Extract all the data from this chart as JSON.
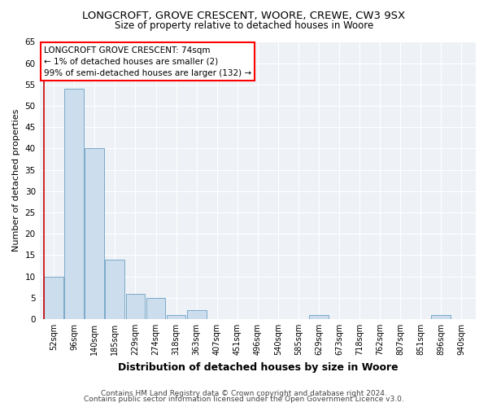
{
  "title1": "LONGCROFT, GROVE CRESCENT, WOORE, CREWE, CW3 9SX",
  "title2": "Size of property relative to detached houses in Woore",
  "xlabel": "Distribution of detached houses by size in Woore",
  "ylabel": "Number of detached properties",
  "categories": [
    "52sqm",
    "96sqm",
    "140sqm",
    "185sqm",
    "229sqm",
    "274sqm",
    "318sqm",
    "363sqm",
    "407sqm",
    "451sqm",
    "496sqm",
    "540sqm",
    "585sqm",
    "629sqm",
    "673sqm",
    "718sqm",
    "762sqm",
    "807sqm",
    "851sqm",
    "896sqm",
    "940sqm"
  ],
  "values": [
    10,
    54,
    40,
    14,
    6,
    5,
    1,
    2,
    0,
    0,
    0,
    0,
    0,
    1,
    0,
    0,
    0,
    0,
    0,
    1,
    0
  ],
  "bar_color": "#ccdded",
  "bar_edge_color": "#7aaac8",
  "marker_color": "#cc0000",
  "ylim": [
    0,
    65
  ],
  "yticks": [
    0,
    5,
    10,
    15,
    20,
    25,
    30,
    35,
    40,
    45,
    50,
    55,
    60,
    65
  ],
  "annotation_title": "LONGCROFT GROVE CRESCENT: 74sqm",
  "annotation_line1": "← 1% of detached houses are smaller (2)",
  "annotation_line2": "99% of semi-detached houses are larger (132) →",
  "footnote1": "Contains HM Land Registry data © Crown copyright and database right 2024.",
  "footnote2": "Contains public sector information licensed under the Open Government Licence v3.0.",
  "background_color": "#eef2f7",
  "grid_color": "#ffffff",
  "title1_fontsize": 9.5,
  "title2_fontsize": 8.5,
  "xlabel_fontsize": 9,
  "ylabel_fontsize": 8,
  "annotation_fontsize": 7.5,
  "tick_fontsize": 7,
  "footnote_fontsize": 6.5
}
